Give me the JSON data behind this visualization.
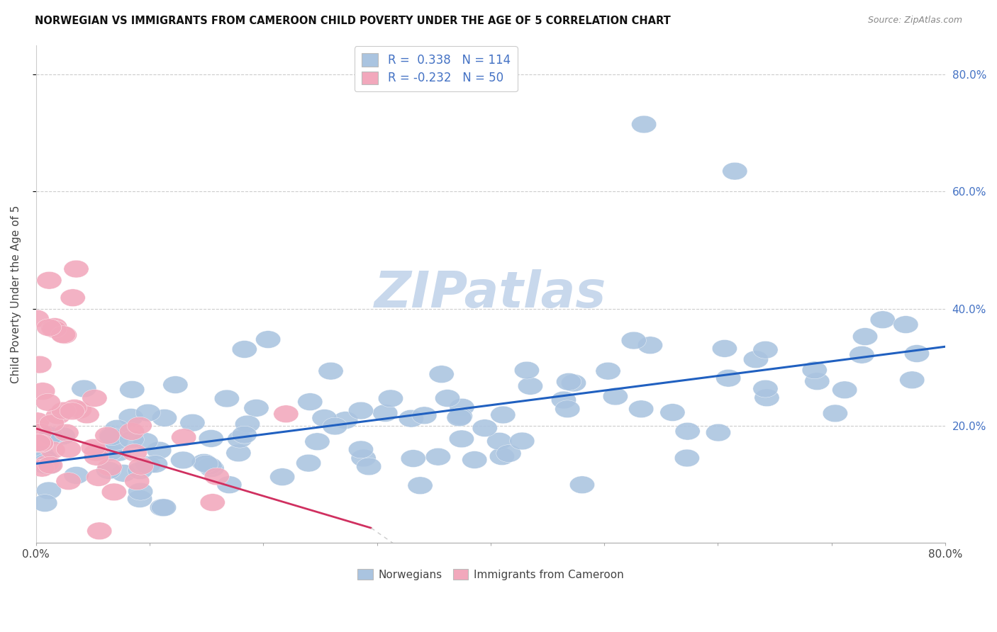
{
  "title": "NORWEGIAN VS IMMIGRANTS FROM CAMEROON CHILD POVERTY UNDER THE AGE OF 5 CORRELATION CHART",
  "source": "Source: ZipAtlas.com",
  "ylabel": "Child Poverty Under the Age of 5",
  "xlim": [
    0.0,
    0.8
  ],
  "ylim": [
    0.0,
    0.85
  ],
  "ytick_positions": [
    0.2,
    0.4,
    0.6,
    0.8
  ],
  "ytick_labels": [
    "20.0%",
    "40.0%",
    "60.0%",
    "80.0%"
  ],
  "legend_labels": [
    "Norwegians",
    "Immigrants from Cameroon"
  ],
  "blue_R": 0.338,
  "blue_N": 114,
  "pink_R": -0.232,
  "pink_N": 50,
  "blue_color": "#aac4e0",
  "pink_color": "#f2a8bc",
  "blue_line_color": "#2060c0",
  "pink_line_color": "#d03060",
  "watermark_color": "#c8d8ec",
  "blue_trend_x0": 0.0,
  "blue_trend_x1": 0.8,
  "blue_trend_y0": 0.135,
  "blue_trend_y1": 0.335,
  "pink_trend_x0": 0.0,
  "pink_trend_x1": 0.295,
  "pink_trend_y0": 0.195,
  "pink_trend_y1": 0.025
}
